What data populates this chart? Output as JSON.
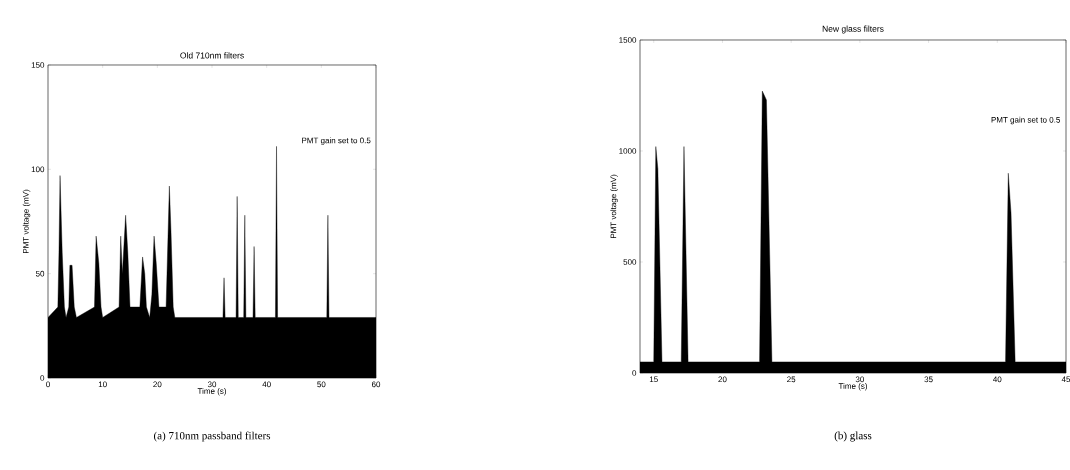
{
  "chart_data": [
    {
      "type": "area",
      "title": "Old 710nm filters",
      "xlabel": "Time (s)",
      "ylabel": "PMT voltage (mV)",
      "annotations": [
        "PMT gain set to 0.5",
        "(a) 710nm passband filters"
      ],
      "x": [
        0,
        1.8,
        2.0,
        2.2,
        2.6,
        3.0,
        3.3,
        3.8,
        4.0,
        4.4,
        4.8,
        5.2,
        8.5,
        8.8,
        9.3,
        9.7,
        10,
        13.0,
        13.3,
        13.6,
        14.2,
        14.6,
        15.0,
        16.8,
        17.3,
        17.7,
        18.0,
        18.6,
        19.0,
        19.4,
        19.8,
        20.3,
        21.6,
        22.2,
        22.5,
        22.9,
        23.2,
        32.0,
        32.2,
        32.4,
        34.4,
        34.6,
        34.8,
        35.8,
        36.0,
        36.2,
        37.5,
        37.7,
        37.9,
        41.6,
        41.8,
        42.0,
        51.0,
        51.2,
        51.4,
        60
      ],
      "color": "#000000",
      "values": [
        29,
        34,
        60,
        97,
        60,
        34,
        29,
        34,
        54,
        54,
        34,
        29,
        34,
        68,
        55,
        34,
        29,
        34,
        68,
        50,
        78,
        60,
        34,
        34,
        58,
        50,
        34,
        29,
        40,
        68,
        55,
        34,
        34,
        92,
        70,
        34,
        29,
        29,
        48,
        29,
        29,
        87,
        29,
        29,
        78,
        29,
        29,
        63,
        29,
        29,
        111,
        29,
        29,
        78,
        29,
        29
      ],
      "xlim": [
        0,
        60
      ],
      "ylim": [
        0,
        150
      ],
      "xticks": [
        0,
        10,
        20,
        30,
        40,
        50,
        60
      ],
      "yticks": [
        0,
        50,
        100,
        150
      ]
    },
    {
      "type": "area",
      "title": "New glass filters",
      "xlabel": "Time (s)",
      "ylabel": "PMT voltage (mV)",
      "annotations": [
        "PMT gain set to 0.5",
        "(b) glass"
      ],
      "x": [
        14,
        15.0,
        15.15,
        15.3,
        15.6,
        17.0,
        17.2,
        17.5,
        22.7,
        22.9,
        23.2,
        23.6,
        40.6,
        40.8,
        41.0,
        41.3,
        45
      ],
      "color": "#000000",
      "values": [
        50,
        50,
        1020,
        920,
        50,
        50,
        1020,
        50,
        50,
        1270,
        1230,
        50,
        50,
        900,
        720,
        50,
        50
      ],
      "xlim": [
        14,
        45
      ],
      "ylim": [
        0,
        1500
      ],
      "xticks": [
        15,
        20,
        25,
        30,
        35,
        40,
        45
      ],
      "yticks": [
        0,
        500,
        1000,
        1500
      ]
    }
  ]
}
